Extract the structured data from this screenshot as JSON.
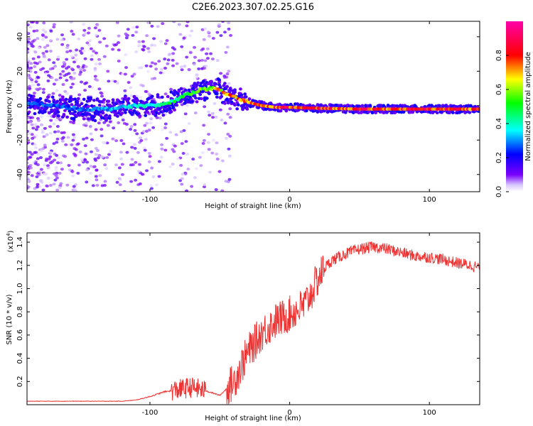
{
  "title": "C2E6.2023.307.02.25.G16",
  "chart_data": [
    {
      "type": "heatmap",
      "xlabel": "Height of straight line (km)",
      "ylabel": "Frequency (Hz)",
      "xlim": [
        -188,
        136
      ],
      "ylim": [
        -50,
        49
      ],
      "x_ticks": [
        -100,
        0,
        100
      ],
      "x_tick_labels": [
        "-100",
        "0",
        "100"
      ],
      "y_ticks": [
        -40,
        -20,
        0,
        20,
        40
      ],
      "y_tick_labels": [
        "-40",
        "-20",
        "0",
        "20",
        "40"
      ],
      "colorbar": {
        "label": "Normalized spectral amplitude",
        "range": [
          0,
          1
        ],
        "ticks": [
          0.0,
          0.2,
          0.4,
          0.6,
          0.8
        ],
        "tick_labels": [
          "0.0",
          "0.2",
          "0.4",
          "0.6",
          "0.8"
        ],
        "colors": [
          "#ffffff",
          "#7b00ff",
          "#0000ff",
          "#00ffff",
          "#00ff00",
          "#ffff00",
          "#ff0000",
          "#ff00aa"
        ]
      },
      "ridge": {
        "x": [
          -185,
          -170,
          -150,
          -130,
          -110,
          -95,
          -85,
          -75,
          -65,
          -55,
          -48,
          -40,
          -30,
          -20,
          -10,
          0,
          20,
          50,
          80,
          110,
          136
        ],
        "y": [
          1,
          0,
          -2,
          -2,
          0,
          0,
          2,
          6,
          9,
          10,
          8,
          5,
          2,
          0,
          -1,
          -1,
          -1.5,
          -2,
          -2,
          -2,
          -2
        ],
        "amplitude": [
          0.3,
          0.3,
          0.3,
          0.35,
          0.4,
          0.45,
          0.5,
          0.55,
          0.6,
          0.7,
          0.75,
          0.8,
          0.85,
          0.88,
          0.9,
          0.9,
          0.88,
          0.88,
          0.9,
          0.9,
          0.9
        ]
      }
    },
    {
      "type": "line",
      "xlabel": "Height of straight line (km)",
      "ylabel": "SNR (10 * v/v)",
      "exponent_label": "(x10",
      "exponent_power": "4",
      "exponent_close": ")",
      "xlim": [
        -188,
        136
      ],
      "ylim": [
        0,
        1.48
      ],
      "x_ticks": [
        -100,
        0,
        100
      ],
      "x_tick_labels": [
        "-100",
        "0",
        "100"
      ],
      "y_ticks": [
        0.2,
        0.4,
        0.6,
        0.8,
        1.0,
        1.2,
        1.4
      ],
      "y_tick_labels": [
        "0.2",
        "0.4",
        "0.6",
        "0.8",
        "1.0",
        "1.2",
        "1.4"
      ],
      "color": "#ee3333",
      "series": [
        {
          "name": "SNR",
          "x": [
            -188,
            -160,
            -140,
            -120,
            -110,
            -100,
            -90,
            -80,
            -70,
            -60,
            -50,
            -40,
            -30,
            -20,
            -10,
            0,
            10,
            15,
            20,
            25,
            30,
            40,
            50,
            60,
            70,
            80,
            90,
            100,
            110,
            120,
            130,
            136
          ],
          "y": [
            0.03,
            0.03,
            0.03,
            0.03,
            0.04,
            0.07,
            0.11,
            0.13,
            0.15,
            0.12,
            0.08,
            0.2,
            0.45,
            0.62,
            0.72,
            0.78,
            0.85,
            0.95,
            1.08,
            1.18,
            1.24,
            1.3,
            1.34,
            1.36,
            1.34,
            1.31,
            1.28,
            1.27,
            1.25,
            1.22,
            1.2,
            1.18
          ]
        }
      ]
    }
  ]
}
